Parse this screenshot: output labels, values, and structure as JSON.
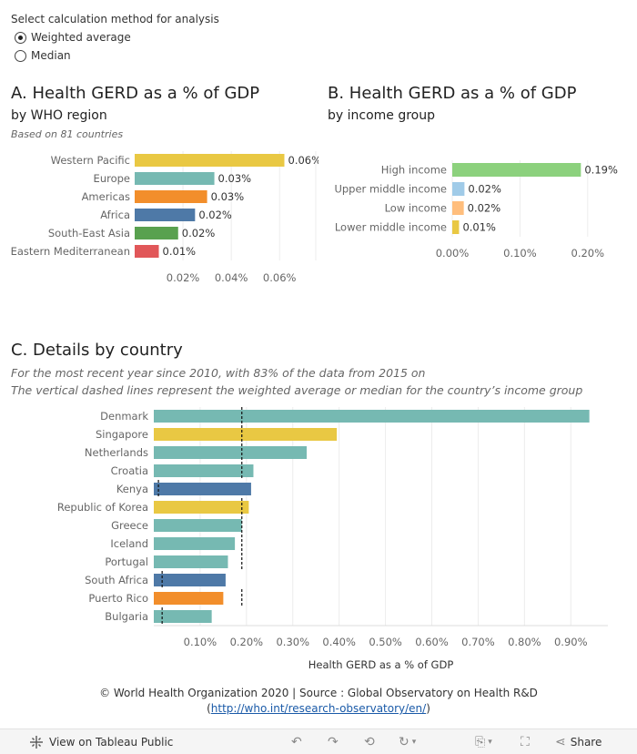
{
  "control": {
    "title": "Select calculation method for analysis",
    "options": [
      {
        "label": "Weighted average",
        "selected": true
      },
      {
        "label": "Median",
        "selected": false
      }
    ]
  },
  "panel_a": {
    "title": "A. Health GERD as a % of GDP",
    "subtitle": "by WHO region",
    "note": "Based on 81 countries"
  },
  "panel_b": {
    "title": "B. Health GERD as a % of GDP",
    "subtitle": "by income group"
  },
  "panel_c": {
    "title": "C. Details by country",
    "note1": "For the most recent year since 2010, with 83% of the data from  2015 on",
    "note2": "The vertical dashed lines represent the weighted average or median for the country’s income group"
  },
  "footer": {
    "line1": "© World Health Organization 2020 | Source : Global Observatory on Health R&D",
    "link_open": "(",
    "link": "http://who.int/research-observatory/en/",
    "link_close": ")"
  },
  "toolbar": {
    "view_label": "View on Tableau Public",
    "share_label": "Share"
  },
  "colors": {
    "western_pacific": "#e9c843",
    "europe": "#76b9b2",
    "americas": "#f28e2b",
    "africa": "#4e79a7",
    "south_east_asia": "#59a14f",
    "eastern_mediterranean": "#e15759",
    "high_income": "#8cd17d",
    "upper_middle_income": "#a0cbe8",
    "low_income": "#ffbe7d",
    "lower_middle_income": "#e9c843"
  },
  "chart_data": [
    {
      "id": "chart_a",
      "type": "bar",
      "orientation": "horizontal",
      "categories": [
        "Western Pacific",
        "Europe",
        "Americas",
        "Africa",
        "South-East Asia",
        "Eastern Mediterranean"
      ],
      "values": [
        0.062,
        0.033,
        0.03,
        0.025,
        0.018,
        0.01
      ],
      "labels": [
        "0.06%",
        "0.03%",
        "0.03%",
        "0.02%",
        "0.02%",
        "0.01%"
      ],
      "color_keys": [
        "western_pacific",
        "europe",
        "americas",
        "africa",
        "south_east_asia",
        "eastern_mediterranean"
      ],
      "xlim": [
        0,
        0.075
      ],
      "xticks": [
        0.02,
        0.04,
        0.06
      ],
      "xtick_labels": [
        "0.02%",
        "0.04%",
        "0.06%"
      ],
      "grid": true
    },
    {
      "id": "chart_b",
      "type": "bar",
      "orientation": "horizontal",
      "categories": [
        "High income",
        "Upper middle income",
        "Low income",
        "Lower middle income"
      ],
      "values": [
        0.19,
        0.018,
        0.017,
        0.01
      ],
      "labels": [
        "0.19%",
        "0.02%",
        "0.02%",
        "0.01%"
      ],
      "color_keys": [
        "high_income",
        "upper_middle_income",
        "low_income",
        "lower_middle_income"
      ],
      "xlim": [
        0,
        0.25
      ],
      "xticks": [
        0.0,
        0.1,
        0.2
      ],
      "xtick_labels": [
        "0.00%",
        "0.10%",
        "0.20%"
      ],
      "grid": true
    },
    {
      "id": "chart_c",
      "type": "bar",
      "orientation": "horizontal",
      "xlabel": "Health GERD as a % of GDP",
      "categories": [
        "Denmark",
        "Singapore",
        "Netherlands",
        "Croatia",
        "Kenya",
        "Republic of Korea",
        "Greece",
        "Iceland",
        "Portugal",
        "South Africa",
        "Puerto Rico",
        "Bulgaria"
      ],
      "values": [
        0.94,
        0.395,
        0.33,
        0.215,
        0.21,
        0.205,
        0.19,
        0.175,
        0.16,
        0.155,
        0.15,
        0.125
      ],
      "color_keys": [
        "europe",
        "western_pacific",
        "europe",
        "europe",
        "africa",
        "western_pacific",
        "europe",
        "europe",
        "europe",
        "africa",
        "americas",
        "europe"
      ],
      "reference_lines": [
        0.19,
        0.19,
        0.19,
        0.19,
        0.01,
        0.19,
        0.19,
        0.19,
        0.19,
        0.018,
        0.19,
        0.018
      ],
      "xlim": [
        0,
        0.98
      ],
      "xticks": [
        0.1,
        0.2,
        0.3,
        0.4,
        0.5,
        0.6,
        0.7,
        0.8,
        0.9
      ],
      "xtick_labels": [
        "0.10%",
        "0.20%",
        "0.30%",
        "0.40%",
        "0.50%",
        "0.60%",
        "0.70%",
        "0.80%",
        "0.90%"
      ],
      "grid": true
    }
  ]
}
